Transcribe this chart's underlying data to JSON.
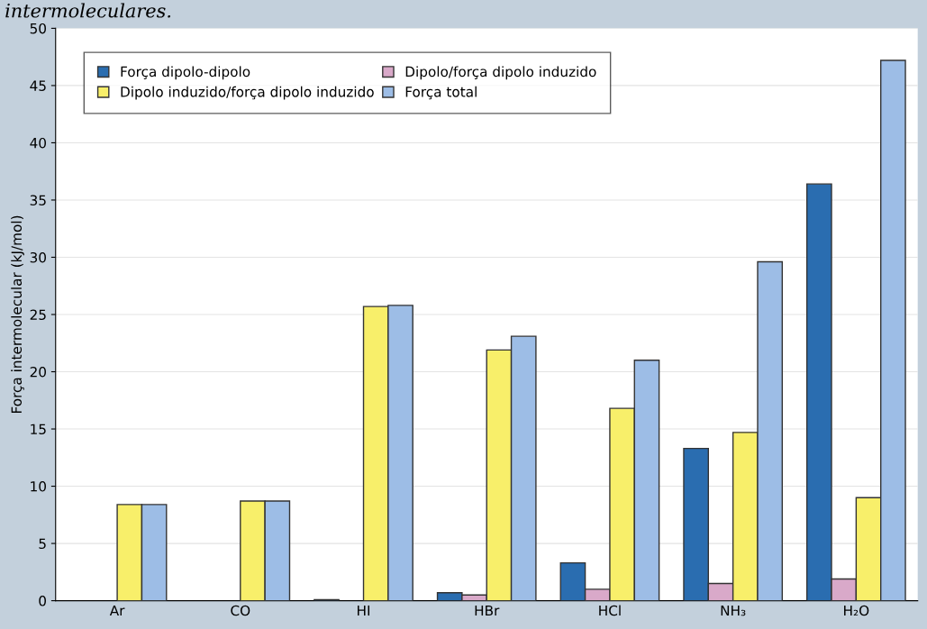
{
  "chart_data": {
    "type": "bar",
    "ylabel": "Força intermolecular (kJ/mol)",
    "annotations": [
      "intermoleculares."
    ],
    "categories": [
      "Ar",
      "CO",
      "HI",
      "HBr",
      "HCl",
      "NH₃",
      "H₂O"
    ],
    "series": [
      {
        "name": "Força dipolo-dipolo",
        "color": "#2a6db0",
        "values": [
          0,
          0,
          0.1,
          0.7,
          3.3,
          13.3,
          36.4
        ]
      },
      {
        "name": "Dipolo/força dipolo induzido",
        "color": "#d9a9c9",
        "values": [
          0,
          0,
          0,
          0.5,
          1.0,
          1.5,
          1.9
        ]
      },
      {
        "name": "Dipolo induzido/força dipolo induzido",
        "color": "#f8ef6a",
        "values": [
          8.4,
          8.7,
          25.7,
          21.9,
          16.8,
          14.7,
          9.0
        ]
      },
      {
        "name": "Força total",
        "color": "#9dbde6",
        "values": [
          8.4,
          8.7,
          25.8,
          23.1,
          21.0,
          29.6,
          47.2
        ]
      }
    ],
    "ylim": [
      0,
      50
    ],
    "yticks": [
      0,
      5,
      10,
      15,
      20,
      25,
      30,
      35,
      40,
      45,
      50
    ],
    "grid": "y",
    "legend": "top left"
  }
}
